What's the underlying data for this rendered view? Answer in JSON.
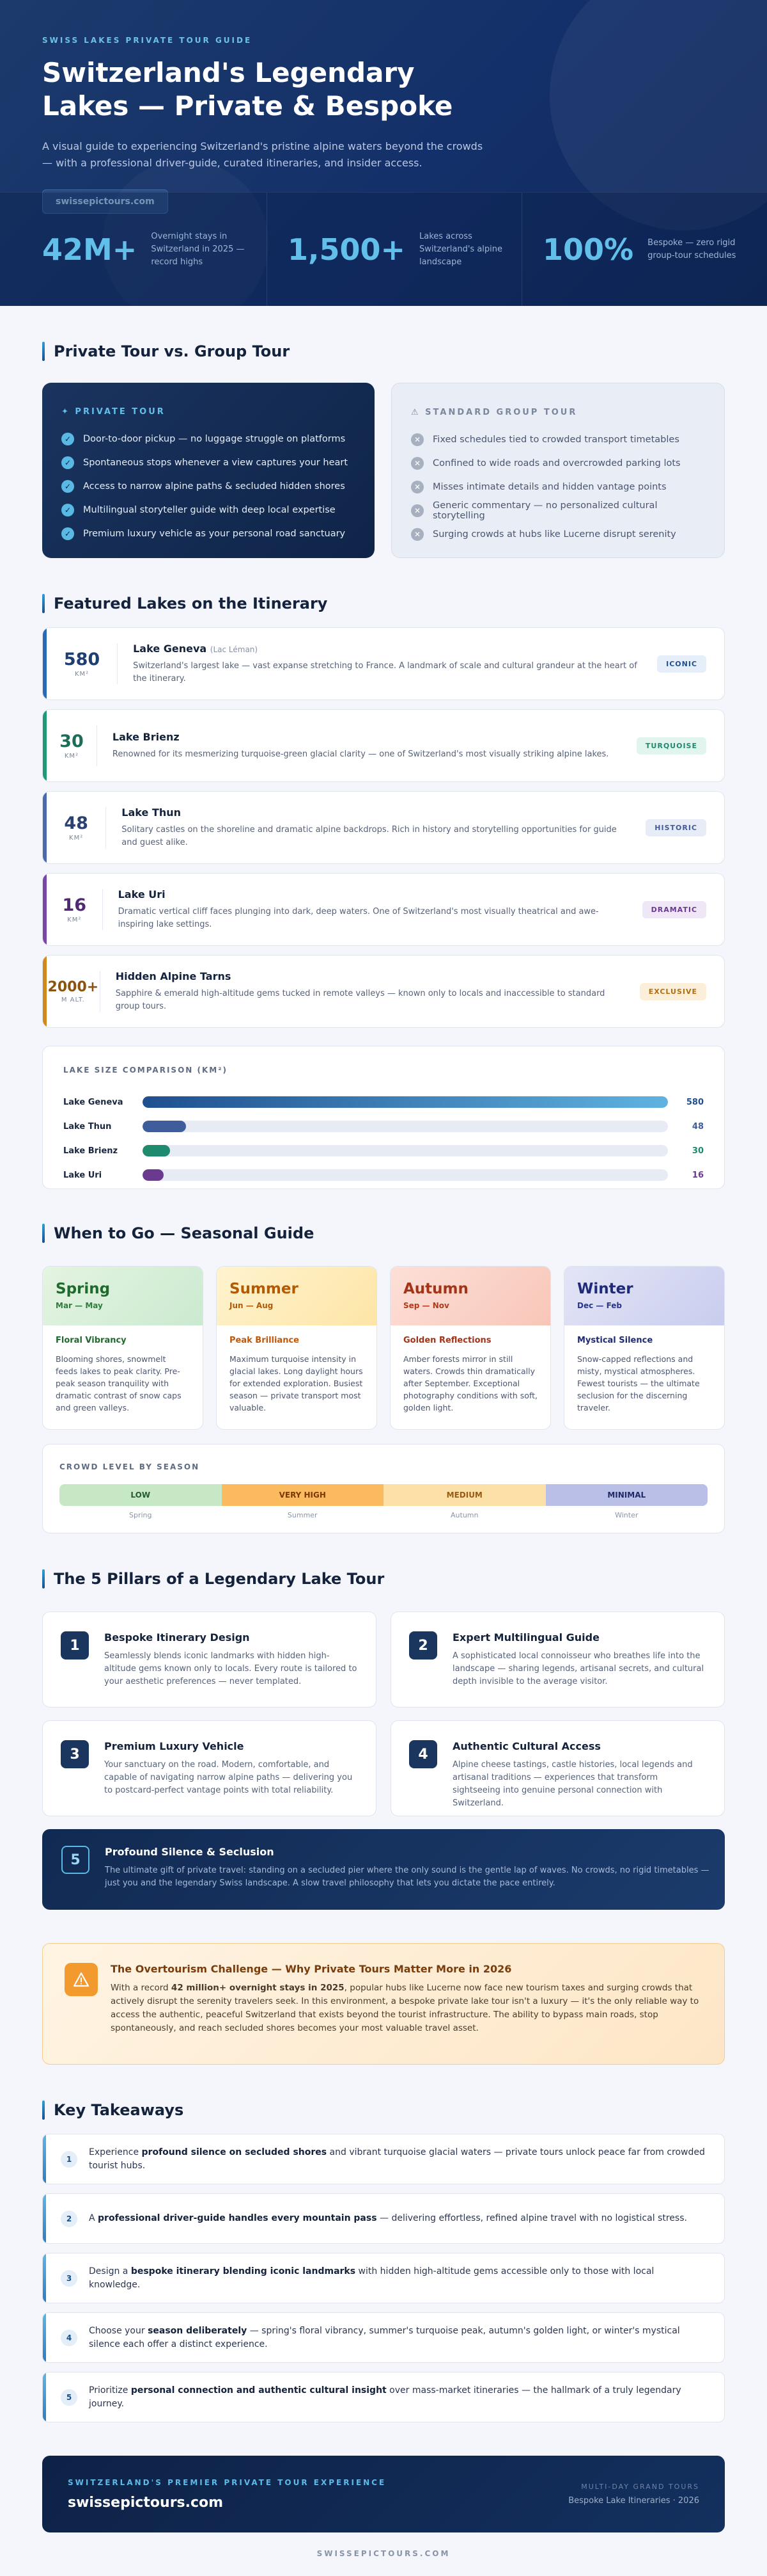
{
  "hero": {
    "kicker": "SWISS LAKES PRIVATE TOUR GUIDE",
    "title_line1": "Switzerland's Legendary",
    "title_line2": "Lakes — Private & Bespoke",
    "subtitle": "A visual guide to experiencing Switzerland's pristine alpine waters beyond the crowds — with a professional driver-guide, curated itineraries, and insider access.",
    "site": "swissepictours.com",
    "stats": [
      {
        "num": "42M+",
        "label": "Overnight stays in Switzerland in 2025 — record highs"
      },
      {
        "num": "1,500+",
        "label": "Lakes across Switzerland's alpine landscape"
      },
      {
        "num": "100%",
        "label": "Bespoke — zero rigid group-tour schedules"
      }
    ]
  },
  "compare": {
    "title": "Private Tour vs. Group Tour",
    "private": {
      "head": "✦ PRIVATE TOUR",
      "items": [
        "Door-to-door pickup — no luggage struggle on platforms",
        "Spontaneous stops whenever a view captures your heart",
        "Access to narrow alpine paths & secluded hidden shores",
        "Multilingual storyteller guide with deep local expertise",
        "Premium luxury vehicle as your personal road sanctuary"
      ]
    },
    "group": {
      "head": "⚠ STANDARD GROUP TOUR",
      "items": [
        "Fixed schedules tied to crowded transport timetables",
        "Confined to wide roads and overcrowded parking lots",
        "Misses intimate details and hidden vantage points",
        "Generic commentary — no personalized cultural storytelling",
        "Surging crowds at hubs like Lucerne disrupt serenity"
      ]
    }
  },
  "lakes": {
    "title": "Featured Lakes on the Itinerary",
    "items": [
      {
        "metric": "580",
        "unit": "KM²",
        "name": "Lake Geneva",
        "alt": "(Lac Léman)",
        "desc": "Switzerland's largest lake — vast expanse stretching to France. A landmark of scale and cultural grandeur at the heart of the itinerary.",
        "tag": "ICONIC",
        "color": "#1f4f8f"
      },
      {
        "metric": "30",
        "unit": "KM²",
        "name": "Lake Brienz",
        "alt": "",
        "desc": "Renowned for its mesmerizing turquoise-green glacial clarity — one of Switzerland's most visually striking alpine lakes.",
        "tag": "TURQUOISE",
        "color": "#1e8a6e"
      },
      {
        "metric": "48",
        "unit": "KM²",
        "name": "Lake Thun",
        "alt": "",
        "desc": "Solitary castles on the shoreline and dramatic alpine backdrops. Rich in history and storytelling opportunities for guide and guest alike.",
        "tag": "HISTORIC",
        "color": "#3f5d9a"
      },
      {
        "metric": "16",
        "unit": "KM²",
        "name": "Lake Uri",
        "alt": "",
        "desc": "Dramatic vertical cliff faces plunging into dark, deep waters. One of Switzerland's most visually theatrical and awe-inspiring lake settings.",
        "tag": "DRAMATIC",
        "color": "#6a3a8f"
      },
      {
        "metric": "2000+",
        "unit": "M ALT.",
        "name": "Hidden Alpine Tarns",
        "alt": "",
        "desc": "Sapphire & emerald high-altitude gems tucked in remote valleys — known only to locals and inaccessible to standard group tours.",
        "tag": "EXCLUSIVE",
        "color": "#b06d12"
      }
    ],
    "size": {
      "title": "LAKE SIZE COMPARISON (KM²)",
      "rows": [
        {
          "name": "Lake Geneva",
          "value": 580,
          "label": "580",
          "color": "#1f4f8f"
        },
        {
          "name": "Lake Thun",
          "value": 48,
          "label": "48",
          "color": "#3f5d9a"
        },
        {
          "name": "Lake Brienz",
          "value": 30,
          "label": "30",
          "color": "#1e8a6e"
        },
        {
          "name": "Lake Uri",
          "value": 16,
          "label": "16",
          "color": "#6a3a8f"
        }
      ]
    }
  },
  "seasons": {
    "title": "When to Go — Seasonal Guide",
    "items": [
      {
        "name": "Spring",
        "months": "Mar — May",
        "highlight": "Floral Vibrancy",
        "text": "Blooming shores, snowmelt feeds lakes to peak clarity. Pre-peak season tranquility with dramatic contrast of snow caps and green valleys."
      },
      {
        "name": "Summer",
        "months": "Jun — Aug",
        "highlight": "Peak Brilliance",
        "text": "Maximum turquoise intensity in glacial lakes. Long daylight hours for extended exploration. Busiest season — private transport most valuable."
      },
      {
        "name": "Autumn",
        "months": "Sep — Nov",
        "highlight": "Golden Reflections",
        "text": "Amber forests mirror in still waters. Crowds thin dramatically after September. Exceptional photography conditions with soft, golden light."
      },
      {
        "name": "Winter",
        "months": "Dec — Feb",
        "highlight": "Mystical Silence",
        "text": "Snow-capped reflections and misty, mystical atmospheres. Fewest tourists — the ultimate seclusion for the discerning traveler."
      }
    ],
    "crowd": {
      "title": "CROWD LEVEL BY SEASON",
      "levels": [
        "LOW",
        "VERY HIGH",
        "MEDIUM",
        "MINIMAL"
      ],
      "labels": [
        "Spring",
        "Summer",
        "Autumn",
        "Winter"
      ]
    }
  },
  "pillars": {
    "title": "The 5 Pillars of a Legendary Lake Tour",
    "items": [
      {
        "num": "1",
        "title": "Bespoke Itinerary Design",
        "text": "Seamlessly blends iconic landmarks with hidden high-altitude gems known only to locals. Every route is tailored to your aesthetic preferences — never templated."
      },
      {
        "num": "2",
        "title": "Expert Multilingual Guide",
        "text": "A sophisticated local connoisseur who breathes life into the landscape — sharing legends, artisanal secrets, and cultural depth invisible to the average visitor."
      },
      {
        "num": "3",
        "title": "Premium Luxury Vehicle",
        "text": "Your sanctuary on the road. Modern, comfortable, and capable of navigating narrow alpine paths — delivering you to postcard-perfect vantage points with total reliability."
      },
      {
        "num": "4",
        "title": "Authentic Cultural Access",
        "text": "Alpine cheese tastings, castle histories, local legends and artisanal traditions — experiences that transform sightseeing into genuine personal connection with Switzerland."
      }
    ],
    "wide": {
      "num": "5",
      "title": "Profound Silence & Seclusion",
      "text": "The ultimate gift of private travel: standing on a secluded pier where the only sound is the gentle lap of waves. No crowds, no rigid timetables — just you and the legendary Swiss landscape. A slow travel philosophy that lets you dictate the pace entirely."
    }
  },
  "overtourism": {
    "title": "The Overtourism Challenge — Why Private Tours Matter More in 2026",
    "pre": "With a record ",
    "bold": "42 million+ overnight stays in 2025",
    "post": ", popular hubs like Lucerne now face new tourism taxes and surging crowds that actively disrupt the serenity travelers seek. In this environment, a bespoke private lake tour isn't a luxury — it's the only reliable way to access the authentic, peaceful Switzerland that exists beyond the tourist infrastructure. The ability to bypass main roads, stop spontaneously, and reach secluded shores becomes your most valuable travel asset."
  },
  "takeaways": {
    "title": "Key Takeaways",
    "items": [
      {
        "num": "1",
        "pre": "Experience ",
        "bold": "profound silence on secluded shores",
        "post": " and vibrant turquoise glacial waters — private tours unlock peace far from crowded tourist hubs."
      },
      {
        "num": "2",
        "pre": "A ",
        "bold": "professional driver-guide handles every mountain pass",
        "post": " — delivering effortless, refined alpine travel with no logistical stress."
      },
      {
        "num": "3",
        "pre": "Design a ",
        "bold": "bespoke itinerary blending iconic landmarks",
        "post": " with hidden high-altitude gems accessible only to those with local knowledge."
      },
      {
        "num": "4",
        "pre": "Choose your ",
        "bold": "season deliberately",
        "post": " — spring's floral vibrancy, summer's turquoise peak, autumn's golden light, or winter's mystical silence each offer a distinct experience."
      },
      {
        "num": "5",
        "pre": "Prioritize ",
        "bold": "personal connection and authentic cultural insight",
        "post": " over mass-market itineraries — the hallmark of a truly legendary journey."
      }
    ]
  },
  "footer": {
    "kicker": "SWITZERLAND'S PREMIER PRIVATE TOUR EXPERIENCE",
    "brand": "swissepictours.com",
    "right1": "MULTI-DAY GRAND TOURS",
    "right2": "Bespoke Lake Itineraries · 2026",
    "copy": "SWISSEPICTOURS.COM"
  }
}
